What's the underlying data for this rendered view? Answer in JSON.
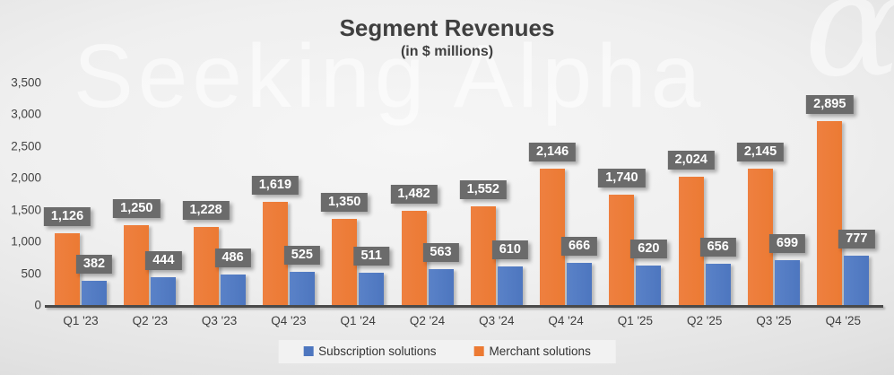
{
  "watermark": {
    "text": "Seeking Alpha",
    "alpha_symbol": "α"
  },
  "header": {
    "title": "Segment Revenues",
    "subtitle": "(in $ millions)"
  },
  "colors": {
    "subscription": "#4d76bf",
    "merchant": "#ec7a33",
    "value_label_box": "#6b6b6b",
    "value_label_text": "#ffffff",
    "axis_text": "#3f3f3f"
  },
  "legend": {
    "entries": [
      {
        "label": "Subscription solutions",
        "color": "#4d76bf",
        "series": "subscription"
      },
      {
        "label": "Merchant solutions",
        "color": "#ec7a33",
        "series": "merchant"
      }
    ]
  },
  "chart_data": {
    "type": "bar",
    "title": "Segment Revenues",
    "subtitle": "(in $ millions)",
    "categories": [
      "Q1 '23",
      "Q2 '23",
      "Q3 '23",
      "Q4 '23",
      "Q1 '24",
      "Q2 '24",
      "Q3 '24",
      "Q4 '24",
      "Q1 '25",
      "Q2 '25",
      "Q3 '25",
      "Q4 '25"
    ],
    "series": [
      {
        "name": "Merchant solutions",
        "key": "merchant",
        "color": "#ec7a33",
        "values": [
          1126,
          1250,
          1228,
          1619,
          1350,
          1482,
          1552,
          2146,
          1740,
          2024,
          2145,
          2895
        ]
      },
      {
        "name": "Subscription solutions",
        "key": "subscription",
        "color": "#4d76bf",
        "values": [
          382,
          444,
          486,
          525,
          511,
          563,
          610,
          666,
          620,
          656,
          699,
          777
        ]
      }
    ],
    "bar_order_left_to_right": [
      "Merchant solutions",
      "Subscription solutions"
    ],
    "data_labels": true,
    "data_label_format": "#,##0",
    "ylim": [
      0,
      3500
    ],
    "yticks": [
      0,
      500,
      1000,
      1500,
      2000,
      2500,
      3000,
      3500
    ],
    "grid": false,
    "legend_position": "bottom"
  }
}
